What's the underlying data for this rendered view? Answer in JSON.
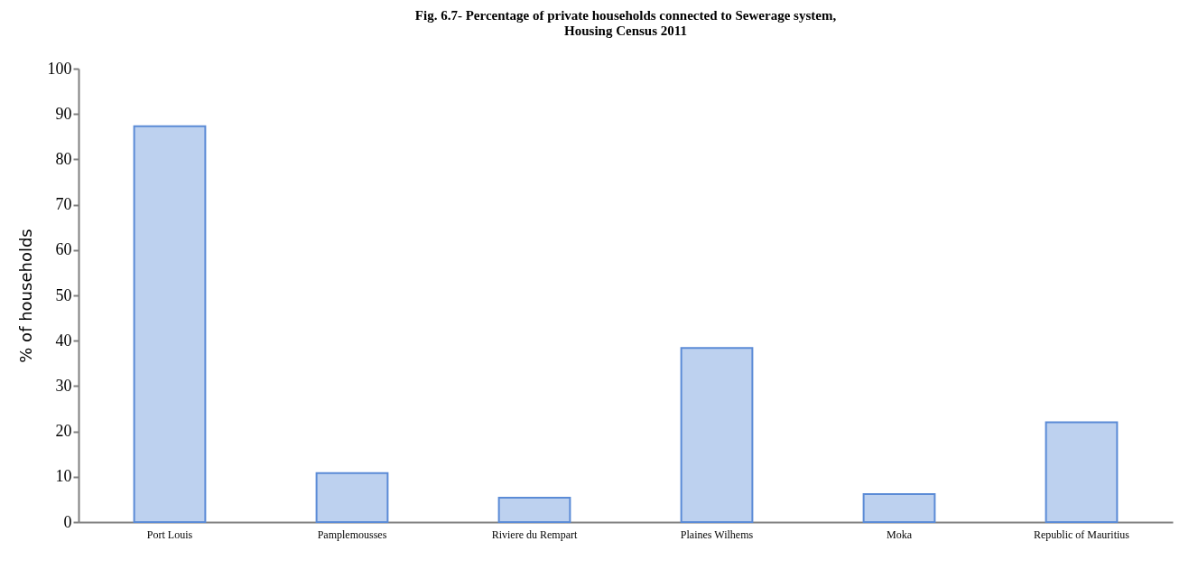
{
  "chart_data": {
    "type": "bar",
    "title": [
      "Fig. 6.7- Percentage of  private households connected to Sewerage system,",
      "Housing Census  2011"
    ],
    "ylabel": "% of households",
    "categories": [
      "Port Louis",
      "Pamplemousses",
      "Riviere du Rempart",
      "Plaines Wilhems",
      "Moka",
      "Republic of Mauritius"
    ],
    "values": [
      87.3,
      10.8,
      5.4,
      38.4,
      6.2,
      22.0
    ],
    "color": "#5b8bd6",
    "ylim": [
      0,
      100
    ],
    "yticks": [
      0,
      10,
      20,
      30,
      40,
      50,
      60,
      70,
      80,
      90,
      100
    ],
    "grid": false
  }
}
